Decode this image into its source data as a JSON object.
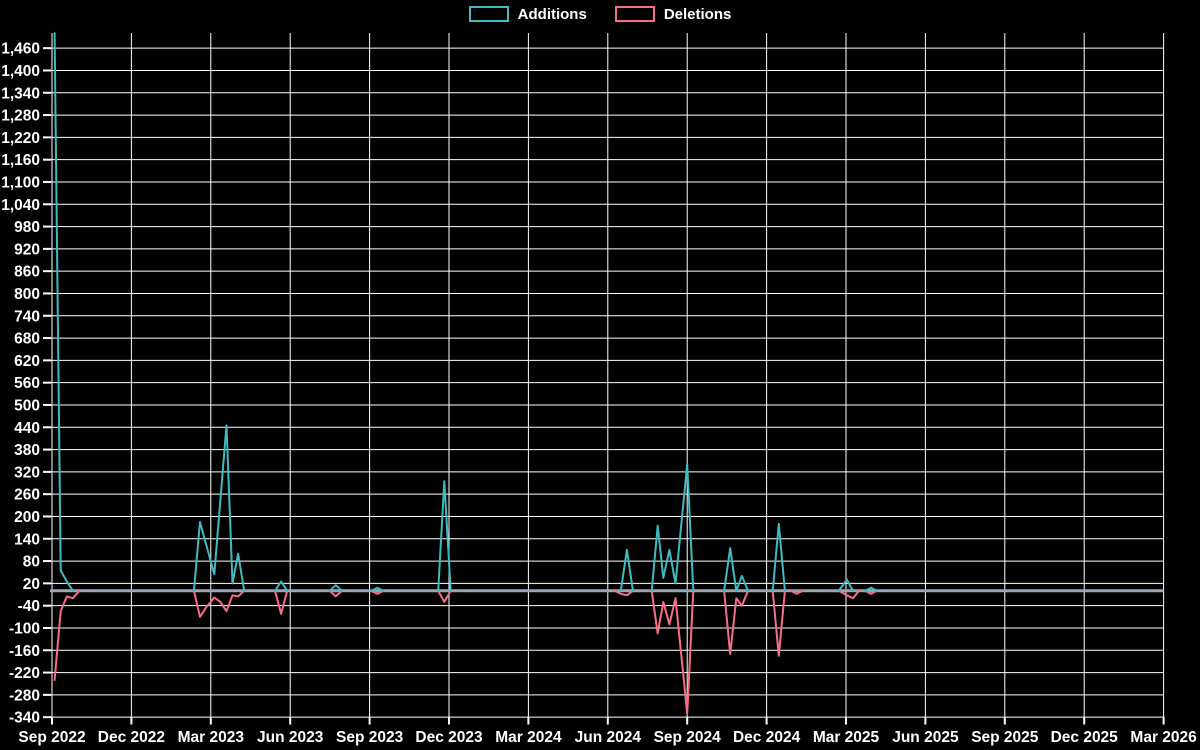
{
  "chart_data": {
    "type": "line",
    "title": "",
    "background_color": "#000000",
    "grid": true,
    "gridline_color": "#ffffff",
    "baseline_color": "#98a7b3",
    "legend_position": "top-center",
    "x_axis": {
      "tick_labels": [
        "Sep 2022",
        "Dec 2022",
        "Mar 2023",
        "Jun 2023",
        "Sep 2023",
        "Dec 2023",
        "Mar 2024",
        "Jun 2024",
        "Sep 2024",
        "Dec 2024",
        "Mar 2025",
        "Jun 2025",
        "Sep 2025",
        "Dec 2025",
        "Mar 2026"
      ]
    },
    "y_axis": {
      "min": -340,
      "max": 1460,
      "tick_step": 60,
      "tick_labels": [
        "1,460",
        "1,400",
        "1,340",
        "1,280",
        "1,220",
        "1,160",
        "1,100",
        "1,040",
        "980",
        "920",
        "860",
        "800",
        "740",
        "680",
        "620",
        "560",
        "500",
        "440",
        "380",
        "320",
        "260",
        "200",
        "140",
        "80",
        "20",
        "-40",
        "-100",
        "-160",
        "-220",
        "-280",
        "-340"
      ]
    },
    "series": [
      {
        "name": "Additions",
        "color": "#3fbac0",
        "points": [
          [
            "2022-09-04",
            1500
          ],
          [
            "2022-09-11",
            55
          ],
          [
            "2022-09-18",
            25
          ],
          [
            "2022-09-25",
            0
          ],
          [
            "2023-02-12",
            0
          ],
          [
            "2023-02-19",
            185
          ],
          [
            "2023-03-05",
            45
          ],
          [
            "2023-03-19",
            445
          ],
          [
            "2023-03-26",
            20
          ],
          [
            "2023-04-02",
            100
          ],
          [
            "2023-04-09",
            0
          ],
          [
            "2023-05-14",
            0
          ],
          [
            "2023-05-21",
            25
          ],
          [
            "2023-05-28",
            0
          ],
          [
            "2023-07-16",
            0
          ],
          [
            "2023-07-23",
            15
          ],
          [
            "2023-07-30",
            0
          ],
          [
            "2023-09-03",
            0
          ],
          [
            "2023-09-10",
            8
          ],
          [
            "2023-09-17",
            0
          ],
          [
            "2023-11-19",
            0
          ],
          [
            "2023-11-26",
            295
          ],
          [
            "2023-12-03",
            0
          ],
          [
            "2024-06-16",
            0
          ],
          [
            "2024-06-23",
            110
          ],
          [
            "2024-06-30",
            0
          ],
          [
            "2024-07-21",
            0
          ],
          [
            "2024-07-28",
            175
          ],
          [
            "2024-08-04",
            35
          ],
          [
            "2024-08-11",
            110
          ],
          [
            "2024-08-18",
            20
          ],
          [
            "2024-09-01",
            340
          ],
          [
            "2024-09-08",
            0
          ],
          [
            "2024-10-13",
            0
          ],
          [
            "2024-10-20",
            115
          ],
          [
            "2024-10-27",
            0
          ],
          [
            "2024-11-03",
            40
          ],
          [
            "2024-11-10",
            0
          ],
          [
            "2024-12-08",
            0
          ],
          [
            "2024-12-15",
            180
          ],
          [
            "2024-12-22",
            0
          ],
          [
            "2025-02-23",
            0
          ],
          [
            "2025-03-02",
            30
          ],
          [
            "2025-03-09",
            0
          ],
          [
            "2025-03-23",
            0
          ],
          [
            "2025-03-30",
            8
          ],
          [
            "2025-04-06",
            0
          ]
        ]
      },
      {
        "name": "Deletions",
        "color": "#f76e86",
        "points": [
          [
            "2022-09-04",
            -240
          ],
          [
            "2022-09-11",
            -55
          ],
          [
            "2022-09-18",
            -15
          ],
          [
            "2022-09-25",
            -20
          ],
          [
            "2022-10-02",
            0
          ],
          [
            "2023-02-12",
            0
          ],
          [
            "2023-02-19",
            -70
          ],
          [
            "2023-02-26",
            -45
          ],
          [
            "2023-03-05",
            -18
          ],
          [
            "2023-03-12",
            -30
          ],
          [
            "2023-03-19",
            -55
          ],
          [
            "2023-03-26",
            -12
          ],
          [
            "2023-04-02",
            -15
          ],
          [
            "2023-04-09",
            0
          ],
          [
            "2023-05-14",
            0
          ],
          [
            "2023-05-21",
            -62
          ],
          [
            "2023-05-28",
            0
          ],
          [
            "2023-07-16",
            0
          ],
          [
            "2023-07-23",
            -15
          ],
          [
            "2023-07-30",
            0
          ],
          [
            "2023-09-03",
            0
          ],
          [
            "2023-09-10",
            -8
          ],
          [
            "2023-09-17",
            0
          ],
          [
            "2023-11-19",
            0
          ],
          [
            "2023-11-26",
            -30
          ],
          [
            "2023-12-03",
            0
          ],
          [
            "2024-06-09",
            0
          ],
          [
            "2024-06-16",
            -8
          ],
          [
            "2024-06-23",
            -12
          ],
          [
            "2024-06-30",
            0
          ],
          [
            "2024-07-21",
            0
          ],
          [
            "2024-07-28",
            -115
          ],
          [
            "2024-08-04",
            -30
          ],
          [
            "2024-08-11",
            -90
          ],
          [
            "2024-08-18",
            -20
          ],
          [
            "2024-09-01",
            -330
          ],
          [
            "2024-09-08",
            0
          ],
          [
            "2024-10-13",
            0
          ],
          [
            "2024-10-20",
            -170
          ],
          [
            "2024-10-27",
            -20
          ],
          [
            "2024-11-03",
            -40
          ],
          [
            "2024-11-10",
            0
          ],
          [
            "2024-12-08",
            0
          ],
          [
            "2024-12-15",
            -175
          ],
          [
            "2024-12-22",
            0
          ],
          [
            "2024-12-29",
            0
          ],
          [
            "2025-01-05",
            -8
          ],
          [
            "2025-01-12",
            0
          ],
          [
            "2025-02-23",
            0
          ],
          [
            "2025-03-02",
            -12
          ],
          [
            "2025-03-09",
            -20
          ],
          [
            "2025-03-16",
            0
          ],
          [
            "2025-03-23",
            0
          ],
          [
            "2025-03-30",
            -8
          ],
          [
            "2025-04-06",
            0
          ]
        ]
      }
    ]
  }
}
